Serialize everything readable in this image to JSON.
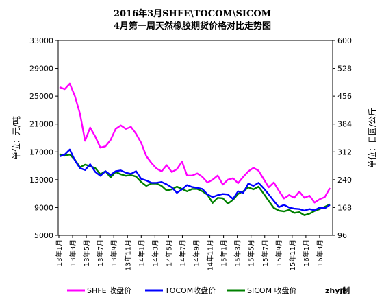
{
  "chart_data": {
    "type": "line",
    "title_line1": "2016年3月SHFE\\TOCOM\\SICOM",
    "title_line2": "4月第一周天然橡胶期货价格对比走势图",
    "ylabel_left": "单位：元/吨",
    "ylabel_right": "单位：日圆/公斤",
    "ylim_left": [
      5000,
      33000
    ],
    "ylim_right": [
      96,
      600
    ],
    "left_ticks": [
      "33000",
      "29000",
      "25000",
      "21000",
      "17000",
      "13000",
      "9000",
      "5000"
    ],
    "right_ticks": [
      "600",
      "528",
      "456",
      "384",
      "312",
      "240",
      "168",
      "96"
    ],
    "x_ticks": [
      "13年1月",
      "13年3月",
      "13年5月",
      "13年7月",
      "13年9月",
      "13年11月",
      "14年1月",
      "14年3月",
      "14年5月",
      "14年7月",
      "14年9月",
      "14年11月",
      "15年1月",
      "15年3月",
      "15年5月",
      "15年7月",
      "15年9月",
      "15年11月",
      "16年1月",
      "16年3月"
    ],
    "grid": false,
    "legend_position": "bottom",
    "credit": "zhyj制",
    "series": [
      {
        "name": "SHFE 收盘价",
        "axis": "left",
        "color": "#ff00ff",
        "values": [
          26300,
          26000,
          26800,
          25000,
          22500,
          18600,
          20500,
          19200,
          17600,
          17800,
          18700,
          20300,
          20800,
          20300,
          20600,
          19600,
          18300,
          16400,
          15400,
          14600,
          14200,
          15100,
          14100,
          14500,
          15600,
          13600,
          13600,
          13900,
          13400,
          12600,
          13000,
          13600,
          12300,
          13000,
          13200,
          12500,
          13400,
          14200,
          14700,
          14300,
          13100,
          11900,
          12600,
          11400,
          10300,
          10800,
          10400,
          11300,
          10400,
          10700,
          9700,
          10200,
          10500,
          11800
        ]
      },
      {
        "name": "TOCOM收盘价",
        "axis": "right",
        "color": "#0000ff",
        "values": [
          300,
          305,
          318,
          290,
          270,
          265,
          280,
          260,
          250,
          262,
          252,
          262,
          264,
          258,
          255,
          262,
          242,
          238,
          232,
          232,
          234,
          228,
          220,
          206,
          215,
          226,
          221,
          219,
          216,
          202,
          195,
          200,
          203,
          202,
          190,
          210,
          206,
          230,
          224,
          232,
          218,
          202,
          185,
          169,
          175,
          168,
          165,
          164,
          160,
          164,
          161,
          168,
          166,
          175
        ]
      },
      {
        "name": "SICOM 收盘价",
        "axis": "right",
        "color": "#008000",
        "values": [
          306,
          302,
          305,
          292,
          272,
          279,
          275,
          270,
          254,
          262,
          246,
          260,
          254,
          250,
          252,
          248,
          234,
          224,
          230,
          230,
          224,
          212,
          215,
          222,
          216,
          210,
          216,
          216,
          210,
          201,
          180,
          193,
          192,
          178,
          188,
          203,
          210,
          220,
          215,
          222,
          204,
          185,
          167,
          160,
          158,
          162,
          154,
          156,
          148,
          152,
          159,
          164,
          170,
          176
        ]
      }
    ]
  }
}
